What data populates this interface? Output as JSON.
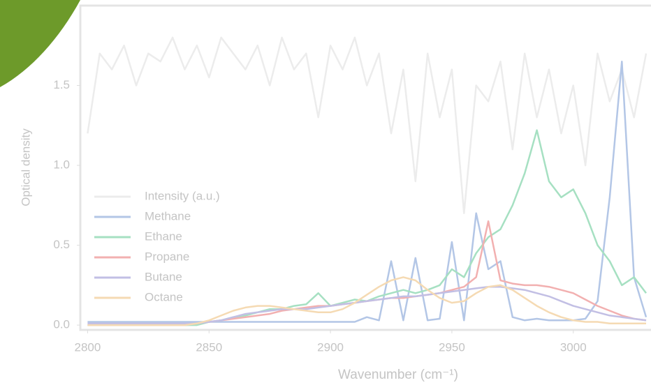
{
  "chart_data": {
    "type": "line",
    "xlabel": "Wavenumber (cm⁻¹)",
    "ylabel": "Optical density",
    "x": [
      2800,
      2805,
      2810,
      2815,
      2820,
      2825,
      2830,
      2835,
      2840,
      2845,
      2850,
      2855,
      2860,
      2865,
      2870,
      2875,
      2880,
      2885,
      2890,
      2895,
      2900,
      2905,
      2910,
      2915,
      2920,
      2925,
      2930,
      2935,
      2940,
      2945,
      2950,
      2955,
      2960,
      2965,
      2970,
      2975,
      2980,
      2985,
      2990,
      2995,
      3000,
      3005,
      3010,
      3015,
      3020,
      3025,
      3030
    ],
    "xlim": [
      2797,
      3032
    ],
    "xticks": [
      2800,
      2850,
      2900,
      2950,
      3000
    ],
    "ylim": [
      -0.03,
      2.0
    ],
    "yticks": [
      {
        "value": 0,
        "label": "0.0"
      },
      0.5,
      {
        "value": 1,
        "label": "1.0"
      },
      1.5
    ],
    "legend": "lower left",
    "series": [
      {
        "name": "Intensity (a.u.)",
        "color": "#ececec",
        "values": [
          1.2,
          1.7,
          1.6,
          1.75,
          1.5,
          1.7,
          1.65,
          1.8,
          1.6,
          1.75,
          1.55,
          1.8,
          1.7,
          1.6,
          1.75,
          1.5,
          1.8,
          1.6,
          1.7,
          1.3,
          1.75,
          1.6,
          1.8,
          1.5,
          1.7,
          1.2,
          1.6,
          0.9,
          1.7,
          1.3,
          1.6,
          0.7,
          1.5,
          1.4,
          1.65,
          1.1,
          1.7,
          1.3,
          1.6,
          1.2,
          1.5,
          1.0,
          1.7,
          1.4,
          1.6,
          1.3,
          1.7
        ]
      },
      {
        "name": "Methane",
        "color": "#b3c6e6",
        "values": [
          0.02,
          0.02,
          0.02,
          0.02,
          0.02,
          0.02,
          0.02,
          0.02,
          0.02,
          0.02,
          0.02,
          0.02,
          0.02,
          0.02,
          0.02,
          0.02,
          0.02,
          0.02,
          0.02,
          0.02,
          0.02,
          0.02,
          0.02,
          0.05,
          0.03,
          0.4,
          0.03,
          0.42,
          0.03,
          0.04,
          0.52,
          0.03,
          0.7,
          0.35,
          0.4,
          0.05,
          0.03,
          0.04,
          0.03,
          0.03,
          0.03,
          0.04,
          0.15,
          0.8,
          1.65,
          0.3,
          0.05
        ]
      },
      {
        "name": "Ethane",
        "color": "#a6e0c2",
        "values": [
          0,
          0,
          0,
          0,
          0,
          0,
          0,
          0,
          0,
          0,
          0.02,
          0.03,
          0.05,
          0.06,
          0.08,
          0.1,
          0.1,
          0.12,
          0.13,
          0.2,
          0.12,
          0.14,
          0.16,
          0.15,
          0.18,
          0.2,
          0.22,
          0.2,
          0.22,
          0.25,
          0.35,
          0.3,
          0.45,
          0.55,
          0.6,
          0.75,
          0.95,
          1.22,
          0.9,
          0.8,
          0.85,
          0.7,
          0.5,
          0.4,
          0.25,
          0.3,
          0.2
        ]
      },
      {
        "name": "Propane",
        "color": "#f2b0b0",
        "values": [
          0,
          0,
          0,
          0,
          0,
          0,
          0,
          0,
          0,
          0.01,
          0.02,
          0.03,
          0.04,
          0.05,
          0.06,
          0.07,
          0.09,
          0.1,
          0.11,
          0.12,
          0.12,
          0.13,
          0.14,
          0.15,
          0.16,
          0.17,
          0.17,
          0.18,
          0.19,
          0.2,
          0.22,
          0.24,
          0.3,
          0.65,
          0.28,
          0.26,
          0.25,
          0.25,
          0.24,
          0.22,
          0.2,
          0.16,
          0.12,
          0.09,
          0.06,
          0.04,
          0.03
        ]
      },
      {
        "name": "Butane",
        "color": "#c2bfe4",
        "values": [
          0.01,
          0.01,
          0.01,
          0.01,
          0.01,
          0.01,
          0.01,
          0.01,
          0.01,
          0.01,
          0.02,
          0.03,
          0.05,
          0.07,
          0.08,
          0.09,
          0.1,
          0.1,
          0.1,
          0.11,
          0.12,
          0.13,
          0.14,
          0.15,
          0.16,
          0.17,
          0.18,
          0.18,
          0.19,
          0.2,
          0.21,
          0.22,
          0.23,
          0.24,
          0.24,
          0.23,
          0.22,
          0.2,
          0.18,
          0.15,
          0.12,
          0.1,
          0.08,
          0.06,
          0.05,
          0.04,
          0.03
        ]
      },
      {
        "name": "Octane",
        "color": "#f5dab3",
        "values": [
          0,
          0,
          0,
          0,
          0,
          0,
          0,
          0,
          0,
          0.01,
          0.03,
          0.06,
          0.09,
          0.11,
          0.12,
          0.12,
          0.11,
          0.1,
          0.09,
          0.08,
          0.08,
          0.1,
          0.14,
          0.19,
          0.24,
          0.28,
          0.3,
          0.28,
          0.22,
          0.17,
          0.14,
          0.15,
          0.2,
          0.24,
          0.25,
          0.22,
          0.17,
          0.12,
          0.08,
          0.05,
          0.03,
          0.02,
          0.02,
          0.01,
          0.01,
          0.01,
          0.01
        ]
      }
    ]
  }
}
